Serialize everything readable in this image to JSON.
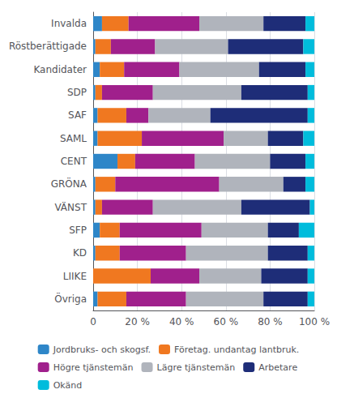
{
  "chart_data": {
    "type": "bar",
    "orientation": "horizontal",
    "stacked": true,
    "categories": [
      "Invalda",
      "Röstberättigade",
      "Kandidater",
      "SDP",
      "SAF",
      "SAML",
      "CENT",
      "GRÖNA",
      "VÄNST",
      "SFP",
      "KD",
      "LIIKE",
      "Övriga"
    ],
    "series": [
      {
        "name": "Jordbruks- och skogsf.",
        "color": "#2e86c8",
        "values": [
          4,
          1,
          3,
          1,
          2,
          2,
          11,
          1,
          1,
          3,
          1,
          0,
          2
        ]
      },
      {
        "name": "Företag. undantag lantbruk.",
        "color": "#f07820",
        "values": [
          12,
          7,
          11,
          3,
          13,
          20,
          8,
          9,
          3,
          9,
          11,
          26,
          13
        ]
      },
      {
        "name": "Högre tjänstemän",
        "color": "#a0208c",
        "values": [
          32,
          20,
          25,
          23,
          10,
          37,
          27,
          47,
          23,
          37,
          30,
          22,
          27
        ]
      },
      {
        "name": "Lägre tjänstemän",
        "color": "#b0b4bc",
        "values": [
          29,
          33,
          36,
          40,
          28,
          20,
          34,
          29,
          40,
          30,
          37,
          28,
          35
        ]
      },
      {
        "name": "Arbetare",
        "color": "#1e2d78",
        "values": [
          19,
          34,
          21,
          30,
          44,
          16,
          16,
          10,
          31,
          14,
          18,
          21,
          20
        ]
      },
      {
        "name": "Okänd",
        "color": "#00bcdc",
        "values": [
          4,
          5,
          4,
          3,
          3,
          5,
          4,
          4,
          2,
          7,
          3,
          3,
          3
        ]
      }
    ],
    "xlim": [
      0,
      100
    ],
    "xticks": [
      0,
      {
        "value": 20,
        "label": "20 %"
      },
      {
        "value": 40,
        "label": "40 %"
      },
      {
        "value": 60,
        "label": "60 %"
      },
      {
        "value": 80,
        "label": "80 %"
      },
      {
        "value": 100,
        "label": "100 %"
      }
    ],
    "grid": true,
    "legend": "bottom"
  }
}
